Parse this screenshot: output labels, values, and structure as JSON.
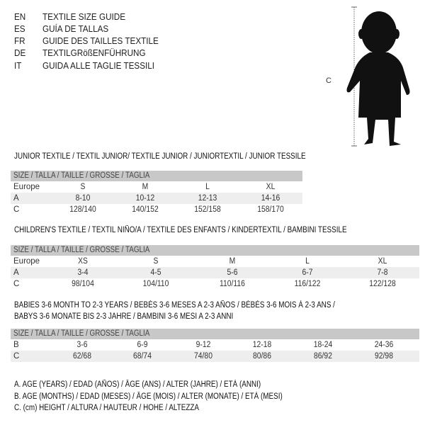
{
  "header": {
    "rows": [
      {
        "code": "EN",
        "text": "TEXTILE SIZE GUIDE"
      },
      {
        "code": "ES",
        "text": "GUÍA DE TALLAS"
      },
      {
        "code": "FR",
        "text": "GUIDE DES TAILLES TEXTILE"
      },
      {
        "code": "DE",
        "text": "TEXTILGRößENFÜHRUNG"
      },
      {
        "code": "IT",
        "text": "GUIDA ALLE TAGLIE TESSILI"
      }
    ]
  },
  "figure": {
    "label": "C",
    "icon": "child-silhouette-icon"
  },
  "size_header": "SIZE / TALLA / TAILLE / GRÖSSE / TAGLIA",
  "junior": {
    "title": "JUNIOR TEXTILE / TEXTIL JUNIOR/ TEXTILE JUNIOR / JUNIORTEXTIL / JUNIOR TESSILE",
    "rows": [
      {
        "label": "Europe",
        "cells": [
          "S",
          "M",
          "L",
          "XL"
        ]
      },
      {
        "label": "A",
        "cells": [
          "8-10",
          "10-12",
          "12-13",
          "14-16"
        ]
      },
      {
        "label": "C",
        "cells": [
          "128/140",
          "140/152",
          "152/158",
          "158/170"
        ]
      }
    ]
  },
  "children": {
    "title": "CHILDREN'S TEXTILE / TEXTIL NIÑO/A / TEXTILE DES ENFANTS / KINDERTEXTIL / BAMBINI TESSILE",
    "rows": [
      {
        "label": "Europe",
        "cells": [
          "XS",
          "S",
          "M",
          "L",
          "XL"
        ]
      },
      {
        "label": "A",
        "cells": [
          "3-4",
          "4-5",
          "5-6",
          "6-7",
          "7-8"
        ]
      },
      {
        "label": "C",
        "cells": [
          "98/104",
          "104/110",
          "110/116",
          "116/122",
          "122/128"
        ]
      }
    ]
  },
  "babies": {
    "title_1": "BABIES 3-6 MONTH TO 2-3 YEARS / BEBÉS 3-6 MESES A 2-3 AÑOS / BÉBÉS 3-6 MOIS À 2-3 ANS /",
    "title_2": "BABYS 3-6 MONATE BIS 2-3 JAHRE / BAMBINI 3-6 MESI A 2-3 ANNI",
    "rows": [
      {
        "label": "B",
        "cells": [
          "3-6",
          "6-9",
          "9-12",
          "12-18",
          "18-24",
          "24-36"
        ]
      },
      {
        "label": "C",
        "cells": [
          "62/68",
          "68/74",
          "74/80",
          "80/86",
          "86/92",
          "92/98"
        ]
      }
    ]
  },
  "legend": [
    "A. AGE (YEARS) / EDAD (AÑOS) / ÂGE (ANS) / ALTER (JAHRE) / ETÀ (ANNI)",
    "B. AGE (MONTHS) / EDAD (MESES) / ÂGE (MOIS) / ALTER (MONATE) / ETÀ (MESI)",
    "C. (cm) HEIGHT / ALTURA / HAUTEUR / HÖHE / ALTEZZA"
  ]
}
